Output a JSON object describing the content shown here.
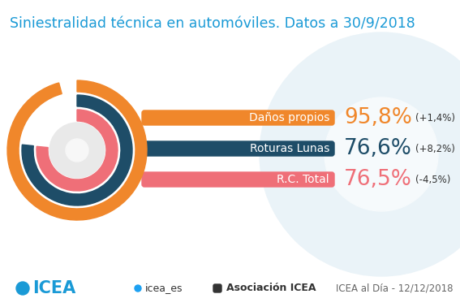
{
  "chart_data": {
    "type": "radial_bar",
    "title": "Siniestralidad técnica en automóviles. Datos a 30/9/2018",
    "categories": [
      "Daños propios",
      "Roturas Lunas",
      "R.C. Total"
    ],
    "values": [
      95.8,
      76.6,
      76.5
    ],
    "value_labels": [
      "95,8%",
      "76,6%",
      "76,5%"
    ],
    "changes": [
      1.4,
      8.2,
      -4.5
    ],
    "change_labels": [
      "(+1,4%)",
      "(+8,2%)",
      "(-4,5%)"
    ],
    "colors": [
      "#f0872b",
      "#1e4d68",
      "#ef6f78"
    ],
    "data_labels": true,
    "tick_labels": false
  },
  "footer": {
    "logo": "ICEA",
    "twitter": "icea_es",
    "linkedin": "Asociación ICEA",
    "source": "ICEA al Día - 12/12/2018"
  }
}
